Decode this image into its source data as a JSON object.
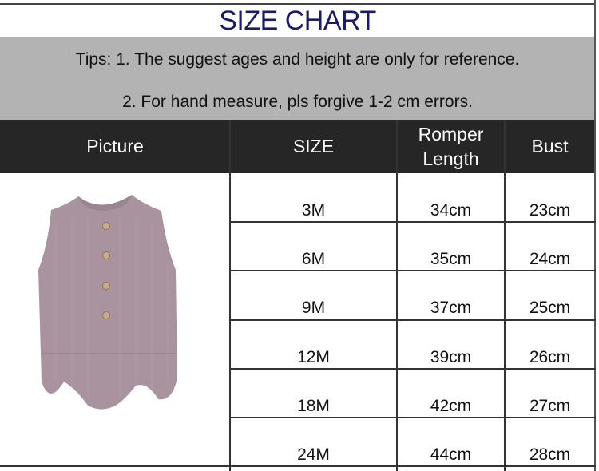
{
  "title": "SIZE CHART",
  "tips": [
    "Tips: 1. The suggest ages and height are only for reference.",
    "2. For hand measure, pls forgive 1-2 cm errors."
  ],
  "headers": [
    "Picture",
    "SIZE",
    "Romper Length",
    "Bust"
  ],
  "rows": [
    {
      "size": "3M",
      "length": "34cm",
      "bust": "23cm"
    },
    {
      "size": "6M",
      "length": "35cm",
      "bust": "24cm"
    },
    {
      "size": "9M",
      "length": "37cm",
      "bust": "25cm"
    },
    {
      "size": "12M",
      "length": "39cm",
      "bust": "26cm"
    },
    {
      "size": "18M",
      "length": "42cm",
      "bust": "27cm"
    },
    {
      "size": "24M",
      "length": "44cm",
      "bust": "28cm"
    }
  ],
  "picture": {
    "icon": "sleeveless-romper-image",
    "color": "#a8939f"
  }
}
